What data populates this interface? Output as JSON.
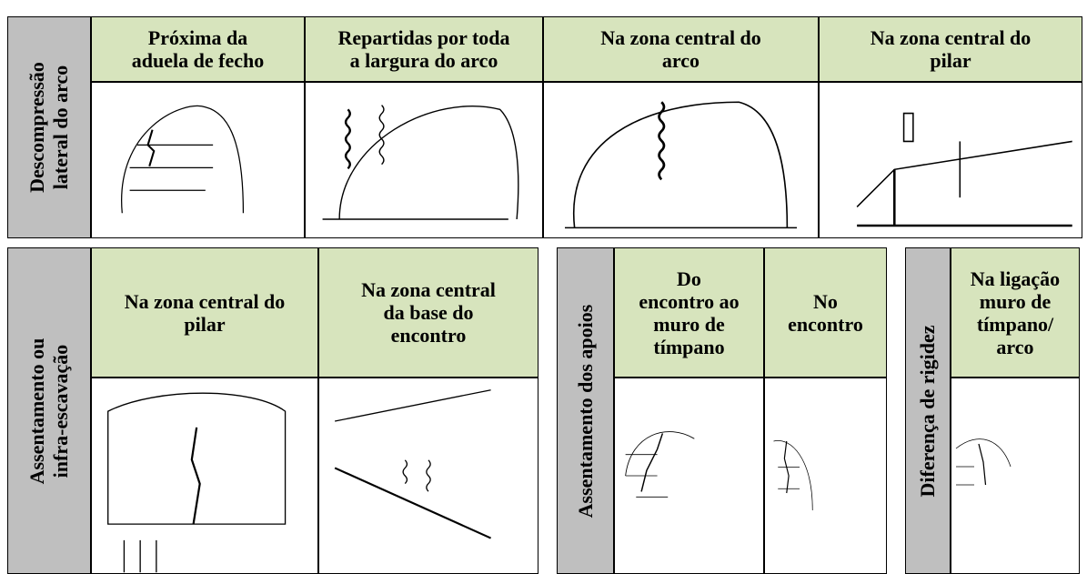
{
  "tables": [
    {
      "side_label": [
        "Descompressão",
        "lateral do arco"
      ],
      "columns": [
        [
          "Próxima da",
          "aduela de fecho"
        ],
        [
          "Repartidas por toda",
          "a largura do arco"
        ],
        [
          "Na zona central do",
          "arco"
        ],
        [
          "Na zona central do",
          "pilar"
        ]
      ]
    },
    {
      "side_label": [
        "Assentamento ou",
        "infra-escavação"
      ],
      "columns": [
        [
          "Na zona central do",
          "pilar"
        ],
        [
          "Na zona central",
          "da base do",
          "encontro"
        ]
      ]
    },
    {
      "side_label": [
        "Assentamento dos apoios"
      ],
      "columns": [
        [
          "Do",
          "encontro ao",
          "muro de",
          "tímpano"
        ],
        [
          "No",
          "encontro"
        ]
      ]
    },
    {
      "side_label": [
        "Diferença de rigidez"
      ],
      "columns": [
        [
          "Na ligação",
          "muro de",
          "tímpano/",
          "arco"
        ]
      ]
    }
  ]
}
